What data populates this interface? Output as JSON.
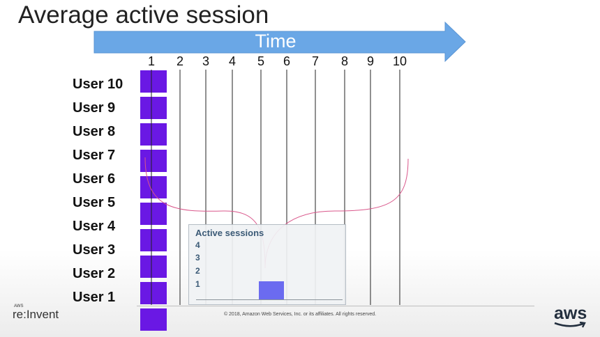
{
  "slide": {
    "title": "Average active session"
  },
  "timeline": {
    "label": "Time",
    "ticks": [
      "1",
      "2",
      "3",
      "4",
      "5",
      "6",
      "7",
      "8",
      "9",
      "10"
    ],
    "arrow_color": "#6aa7e6"
  },
  "users": [
    "User 10",
    "User 9",
    "User 8",
    "User 7",
    "User 6",
    "User 5",
    "User 4",
    "User 3",
    "User 2",
    "User 1"
  ],
  "session_color": "#6a18e4",
  "curve_color": "#d9568a",
  "inset": {
    "title": "Active sessions",
    "y_ticks": [
      "4",
      "3",
      "2",
      "1"
    ],
    "bar": {
      "time_start": 5,
      "time_end": 6,
      "value": 1
    },
    "bar_color": "#6b6bf0"
  },
  "footer": {
    "copyright": "© 2018, Amazon Web Services, Inc. or its affiliates. All rights reserved.",
    "event_logo_small": "AWS",
    "event_logo": "re:Invent",
    "brand_logo": "aws"
  }
}
